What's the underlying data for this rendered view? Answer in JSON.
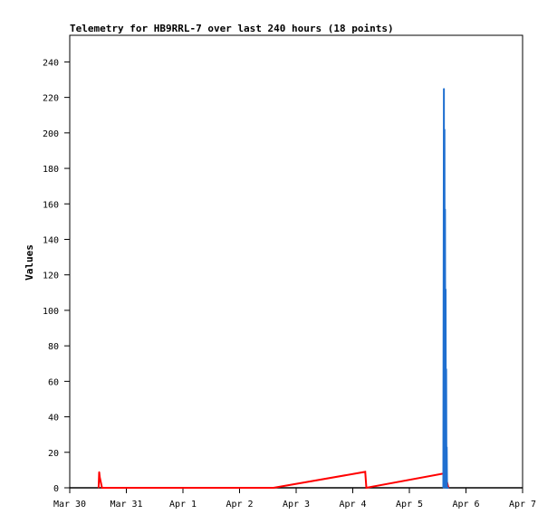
{
  "chart_data": {
    "type": "line",
    "title": "Telemetry for HB9RRL-7 over last 240 hours (18 points)",
    "ylabel": "Values",
    "xlabel": "",
    "x_ticks": [
      "Mar 30",
      "Mar 31",
      "Apr 1",
      "Apr 2",
      "Apr 3",
      "Apr 4",
      "Apr 5",
      "Apr 6",
      "Apr 7"
    ],
    "xlim_days": [
      0,
      8
    ],
    "ylim": [
      0,
      255
    ],
    "y_ticks": [
      0,
      20,
      40,
      60,
      80,
      100,
      120,
      140,
      160,
      180,
      200,
      220,
      240
    ],
    "grid": false,
    "legend": "none",
    "colors": {
      "red_series": "#ff0000",
      "blue_series": "#1f6fd0",
      "axis": "#000000",
      "frame": "#000000"
    },
    "series": [
      {
        "color": "#ff0000",
        "x": [
          0.51,
          0.52,
          0.53,
          0.55,
          0.57,
          3.6,
          5.22,
          5.24,
          6.6,
          6.63,
          6.66,
          6.69
        ],
        "y": [
          0,
          9,
          6,
          3,
          0,
          0,
          9,
          0,
          8,
          4,
          4,
          0
        ]
      },
      {
        "color": "#1f6fd0",
        "x": [
          6.6,
          6.61,
          6.615,
          6.62,
          6.625,
          6.63,
          6.635,
          6.64,
          6.645,
          6.65,
          6.655,
          6.66,
          6.665,
          6.67,
          6.675,
          6.68,
          6.685,
          6.69
        ],
        "y": [
          0,
          225,
          0,
          202,
          0,
          157,
          0,
          112,
          0,
          67,
          0,
          23,
          0,
          0,
          0,
          0,
          0,
          0
        ]
      }
    ]
  }
}
